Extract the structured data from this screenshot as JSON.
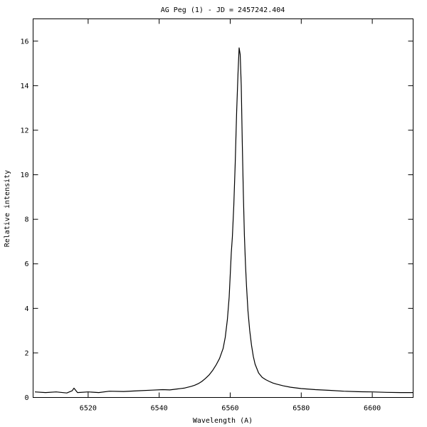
{
  "chart_data": {
    "type": "line",
    "title": "AG Peg (1) - JD = 2457242.404",
    "xlabel": "Wavelength (A)",
    "ylabel": "Relative intensity",
    "xlim": [
      6504.5,
      6611.5
    ],
    "ylim": [
      0,
      17
    ],
    "grid": false,
    "x_ticks": [
      6520,
      6540,
      6560,
      6580,
      6600
    ],
    "x_tick_labels": [
      "6520",
      "6540",
      "6560",
      "6580",
      "6600"
    ],
    "y_ticks": [
      0,
      2,
      4,
      6,
      8,
      10,
      12,
      14,
      16
    ],
    "y_tick_labels": [
      "0",
      "2",
      "4",
      "6",
      "8",
      "10",
      "12",
      "14",
      "16"
    ],
    "series": [
      {
        "color": "#000000",
        "x": [
          6505,
          6508,
          6511,
          6514,
          6515.5,
          6516,
          6517,
          6520,
          6523,
          6526,
          6530,
          6534,
          6538,
          6541,
          6543,
          6545,
          6547,
          6549,
          6550,
          6551,
          6552,
          6553,
          6554,
          6555,
          6556,
          6557,
          6558,
          6558.6,
          6559.2,
          6559.7,
          6560.0,
          6560.3,
          6560.6,
          6561.0,
          6561.4,
          6561.8,
          6562.2,
          6562.5,
          6562.8,
          6563.1,
          6563.4,
          6563.7,
          6564.0,
          6564.3,
          6564.6,
          6565.0,
          6565.5,
          6566.0,
          6566.5,
          6567,
          6568,
          6569,
          6570,
          6571,
          6572,
          6573,
          6575,
          6577,
          6580,
          6584,
          6588,
          6592,
          6596,
          6600,
          6604,
          6608,
          6611.5
        ],
        "y": [
          0.25,
          0.22,
          0.25,
          0.2,
          0.3,
          0.42,
          0.22,
          0.25,
          0.22,
          0.28,
          0.27,
          0.3,
          0.33,
          0.35,
          0.34,
          0.38,
          0.42,
          0.5,
          0.55,
          0.62,
          0.72,
          0.85,
          1.0,
          1.2,
          1.45,
          1.75,
          2.2,
          2.7,
          3.5,
          4.5,
          5.5,
          6.5,
          7.2,
          8.6,
          10.5,
          12.8,
          14.6,
          15.7,
          15.4,
          14.0,
          11.5,
          9.2,
          7.3,
          6.0,
          5.0,
          3.9,
          3.0,
          2.35,
          1.85,
          1.5,
          1.1,
          0.9,
          0.8,
          0.72,
          0.65,
          0.6,
          0.52,
          0.46,
          0.4,
          0.35,
          0.32,
          0.28,
          0.26,
          0.25,
          0.23,
          0.22,
          0.22
        ]
      }
    ]
  }
}
